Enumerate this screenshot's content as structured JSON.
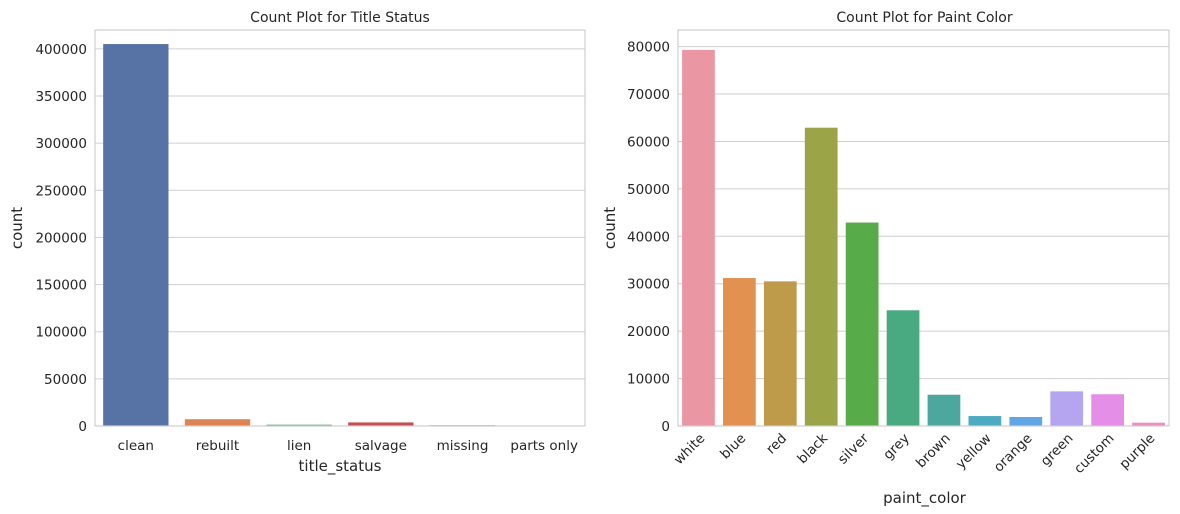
{
  "chart_data": [
    {
      "type": "bar",
      "title": "Count Plot for Title Status",
      "xlabel": "title_status",
      "ylabel": "count",
      "categories": [
        "clean",
        "rebuilt",
        "lien",
        "salvage",
        "missing",
        "parts only"
      ],
      "values": [
        405100,
        7200,
        1400,
        3800,
        800,
        200
      ],
      "colors": [
        "#5773a5",
        "#dd8452",
        "#55a868",
        "#c44e52",
        "#8172b3",
        "#937860"
      ],
      "ylim": [
        0,
        420000
      ],
      "yticks": [
        0,
        50000,
        100000,
        150000,
        200000,
        250000,
        300000,
        350000,
        400000
      ],
      "xtick_rotation": 0,
      "grid": "horizontal"
    },
    {
      "type": "bar",
      "title": "Count Plot for Paint Color",
      "xlabel": "paint_color",
      "ylabel": "count",
      "categories": [
        "white",
        "blue",
        "red",
        "black",
        "silver",
        "grey",
        "brown",
        "yellow",
        "orange",
        "green",
        "custom",
        "purple"
      ],
      "values": [
        79300,
        31200,
        30500,
        62900,
        42900,
        24400,
        6600,
        2100,
        1900,
        7300,
        6700,
        700
      ],
      "colors": [
        "#ea96a3",
        "#e39150",
        "#bd9b4b",
        "#9ba447",
        "#57ab48",
        "#49aa82",
        "#4ca89f",
        "#4eaac0",
        "#60a6e4",
        "#b5a4ef",
        "#e58ee8",
        "#eb8fc3"
      ],
      "ylim": [
        0,
        83500
      ],
      "yticks": [
        0,
        10000,
        20000,
        30000,
        40000,
        50000,
        60000,
        70000,
        80000
      ],
      "xtick_rotation": -45,
      "grid": "horizontal"
    }
  ]
}
